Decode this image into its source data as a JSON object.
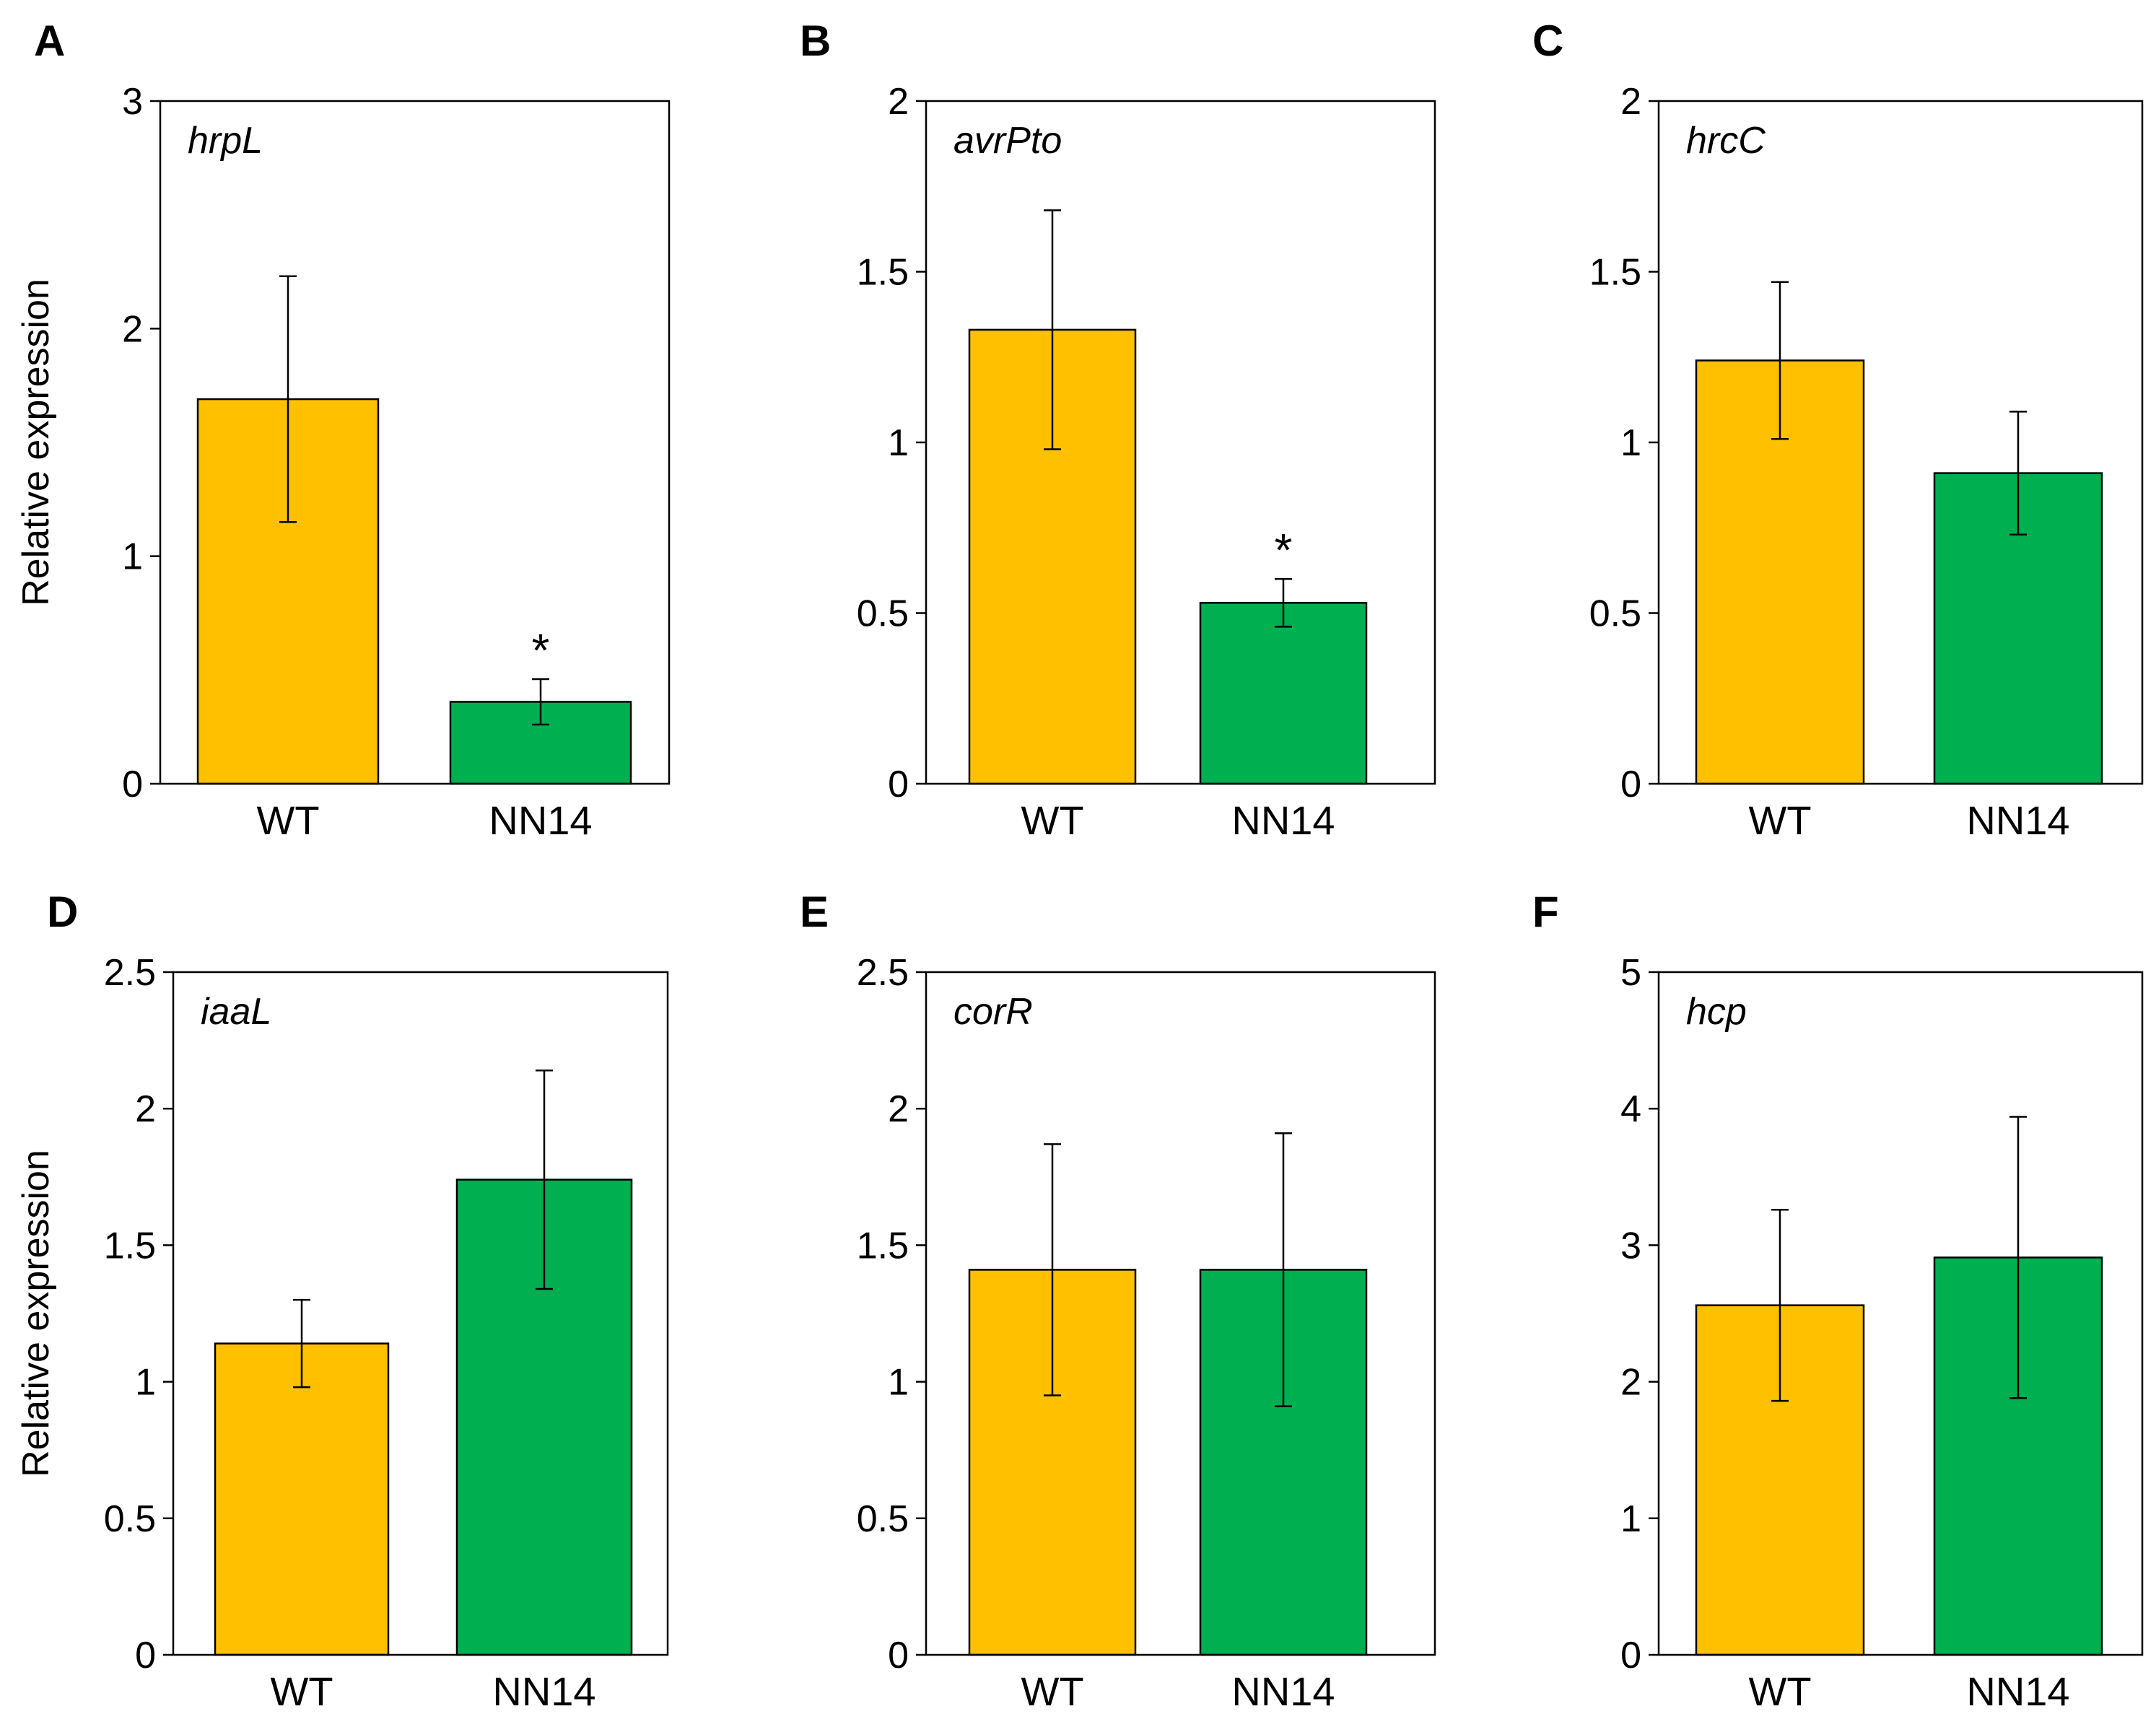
{
  "chart_data": [
    {
      "panel": "A",
      "type": "bar",
      "gene": "hrpL",
      "ylabel": "Relative expression",
      "ylim": [
        0,
        3
      ],
      "yticks": [
        0,
        1,
        2,
        3
      ],
      "ytick_labels": [
        "0",
        "1",
        "2",
        "3"
      ],
      "categories": [
        "WT",
        "NN14"
      ],
      "values": [
        1.69,
        0.36
      ],
      "errors": [
        0.54,
        0.1
      ],
      "colors": [
        "#FFC000",
        "#00B050"
      ],
      "significance": [
        "",
        "*"
      ]
    },
    {
      "panel": "B",
      "type": "bar",
      "gene": "avrPto",
      "ylabel": "",
      "ylim": [
        0,
        2
      ],
      "yticks": [
        0,
        0.5,
        1,
        1.5,
        2
      ],
      "ytick_labels": [
        "0",
        "0.5",
        "1",
        "1.5",
        "2"
      ],
      "categories": [
        "WT",
        "NN14"
      ],
      "values": [
        1.33,
        0.53
      ],
      "errors": [
        0.35,
        0.07
      ],
      "colors": [
        "#FFC000",
        "#00B050"
      ],
      "significance": [
        "",
        "*"
      ]
    },
    {
      "panel": "C",
      "type": "bar",
      "gene": "hrcC",
      "ylabel": "",
      "ylim": [
        0,
        2
      ],
      "yticks": [
        0,
        0.5,
        1,
        1.5,
        2
      ],
      "ytick_labels": [
        "0",
        "0.5",
        "1",
        "1.5",
        "2"
      ],
      "categories": [
        "WT",
        "NN14"
      ],
      "values": [
        1.24,
        0.91
      ],
      "errors": [
        0.23,
        0.18
      ],
      "colors": [
        "#FFC000",
        "#00B050"
      ],
      "significance": [
        "",
        ""
      ]
    },
    {
      "panel": "D",
      "type": "bar",
      "gene": "iaaL",
      "ylabel": "Relative expression",
      "ylim": [
        0,
        2.5
      ],
      "yticks": [
        0,
        0.5,
        1,
        1.5,
        2,
        2.5
      ],
      "ytick_labels": [
        "0",
        "0.5",
        "1",
        "1.5",
        "2",
        "2.5"
      ],
      "categories": [
        "WT",
        "NN14"
      ],
      "values": [
        1.14,
        1.74
      ],
      "errors": [
        0.16,
        0.4
      ],
      "colors": [
        "#FFC000",
        "#00B050"
      ],
      "significance": [
        "",
        ""
      ]
    },
    {
      "panel": "E",
      "type": "bar",
      "gene": "corR",
      "ylabel": "",
      "ylim": [
        0,
        2.5
      ],
      "yticks": [
        0,
        0.5,
        1,
        1.5,
        2,
        2.5
      ],
      "ytick_labels": [
        "0",
        "0.5",
        "1",
        "1.5",
        "2",
        "2.5"
      ],
      "categories": [
        "WT",
        "NN14"
      ],
      "values": [
        1.41,
        1.41
      ],
      "errors": [
        0.46,
        0.5
      ],
      "colors": [
        "#FFC000",
        "#00B050"
      ],
      "significance": [
        "",
        ""
      ]
    },
    {
      "panel": "F",
      "type": "bar",
      "gene": "hcp",
      "ylabel": "",
      "ylim": [
        0,
        5
      ],
      "yticks": [
        0,
        1,
        2,
        3,
        4,
        5
      ],
      "ytick_labels": [
        "0",
        "1",
        "2",
        "3",
        "4",
        "5"
      ],
      "categories": [
        "WT",
        "NN14"
      ],
      "values": [
        2.56,
        2.91
      ],
      "errors": [
        0.7,
        1.03
      ],
      "colors": [
        "#FFC000",
        "#00B050"
      ],
      "significance": [
        "",
        ""
      ]
    }
  ]
}
